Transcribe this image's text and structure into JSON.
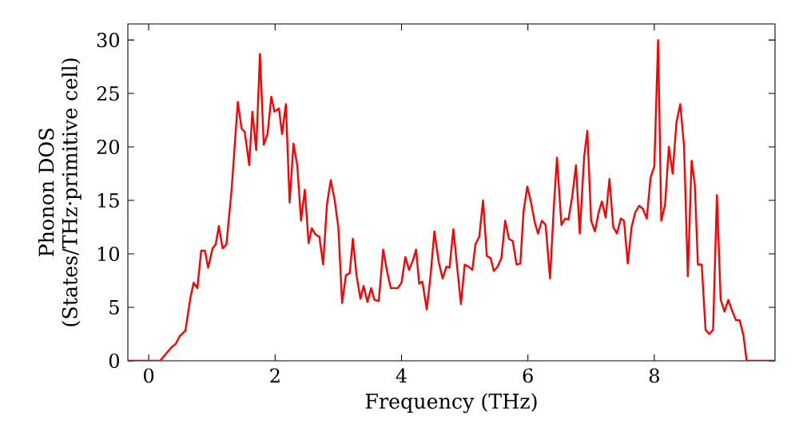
{
  "chart_data": {
    "type": "line",
    "xlabel": "Frequency (THz)",
    "ylabel": "Phonon DOS\n(States/THz·primitive cell)",
    "xlim": [
      -0.33,
      9.91
    ],
    "ylim": [
      0,
      31.5
    ],
    "xticks": [
      0,
      2,
      4,
      6,
      8
    ],
    "yticks": [
      0,
      5,
      10,
      15,
      20,
      25,
      30
    ],
    "grid": false,
    "line_style": "solid",
    "marker": "none",
    "series": [
      {
        "color": "#ff0000",
        "x": [
          -0.33,
          0.18,
          0.35,
          0.43,
          0.49,
          0.58,
          0.66,
          0.71,
          0.77,
          0.83,
          0.89,
          0.94,
          1.01,
          1.06,
          1.11,
          1.17,
          1.23,
          1.31,
          1.41,
          1.47,
          1.52,
          1.59,
          1.64,
          1.7,
          1.76,
          1.82,
          1.88,
          1.94,
          1.99,
          2.06,
          2.11,
          2.17,
          2.23,
          2.29,
          2.35,
          2.41,
          2.47,
          2.53,
          2.58,
          2.64,
          2.7,
          2.76,
          2.82,
          2.88,
          2.94,
          3.0,
          3.06,
          3.12,
          3.18,
          3.23,
          3.29,
          3.35,
          3.4,
          3.46,
          3.52,
          3.57,
          3.64,
          3.71,
          3.77,
          3.83,
          3.94,
          4.0,
          4.06,
          4.12,
          4.18,
          4.23,
          4.28,
          4.33,
          4.4,
          4.46,
          4.52,
          4.59,
          4.65,
          4.71,
          4.76,
          4.82,
          4.88,
          4.94,
          5.0,
          5.06,
          5.12,
          5.17,
          5.23,
          5.29,
          5.35,
          5.41,
          5.46,
          5.52,
          5.58,
          5.64,
          5.7,
          5.76,
          5.82,
          5.88,
          5.93,
          5.99,
          6.05,
          6.11,
          6.16,
          6.22,
          6.28,
          6.35,
          6.41,
          6.46,
          6.53,
          6.59,
          6.64,
          6.7,
          6.76,
          6.82,
          6.89,
          6.94,
          7.0,
          7.06,
          7.12,
          7.17,
          7.23,
          7.29,
          7.35,
          7.41,
          7.47,
          7.52,
          7.58,
          7.64,
          7.7,
          7.76,
          7.82,
          7.88,
          7.94,
          8.0,
          8.06,
          8.11,
          8.17,
          8.23,
          8.29,
          8.35,
          8.41,
          8.47,
          8.53,
          8.59,
          8.64,
          8.69,
          8.75,
          8.81,
          8.87,
          8.93,
          8.99,
          9.05,
          9.11,
          9.17,
          9.23,
          9.29,
          9.35,
          9.41,
          9.46,
          9.91
        ],
        "values": [
          0,
          0,
          1.2,
          1.6,
          2.3,
          2.8,
          5.9,
          7.3,
          6.8,
          10.3,
          10.3,
          8.7,
          10.5,
          10.9,
          12.6,
          10.5,
          10.9,
          15.9,
          24.2,
          21.7,
          21.4,
          18.3,
          23.3,
          19.7,
          28.7,
          20.2,
          21.2,
          24.7,
          23.3,
          23.6,
          21.2,
          24.0,
          14.8,
          20.3,
          18.3,
          13.1,
          16.0,
          11.0,
          12.4,
          11.8,
          11.6,
          9.0,
          14.6,
          16.9,
          15.1,
          12.5,
          5.4,
          8.0,
          8.2,
          11.4,
          7.9,
          5.8,
          7.0,
          5.5,
          6.8,
          5.7,
          5.6,
          10.4,
          8.4,
          6.8,
          6.8,
          7.3,
          9.7,
          8.5,
          9.4,
          10.4,
          7.2,
          7.4,
          4.8,
          8.0,
          12.1,
          9.2,
          7.7,
          8.8,
          8.7,
          12.3,
          8.8,
          5.3,
          9.0,
          8.8,
          8.5,
          10.9,
          11.6,
          15.0,
          9.8,
          9.6,
          8.4,
          8.8,
          9.6,
          13.1,
          11.4,
          11.2,
          9.0,
          9.1,
          13.9,
          16.3,
          14.8,
          12.9,
          11.9,
          13.1,
          12.7,
          7.7,
          14.4,
          19.0,
          12.7,
          13.3,
          13.2,
          15.3,
          18.3,
          11.9,
          19.1,
          21.5,
          13.1,
          12.1,
          13.9,
          14.9,
          13.4,
          17.0,
          12.5,
          11.9,
          13.3,
          13.1,
          9.1,
          12.5,
          13.9,
          14.5,
          14.2,
          13.3,
          17.1,
          18.2,
          30.0,
          13.1,
          14.6,
          20.0,
          17.5,
          22.3,
          24.0,
          20.1,
          7.9,
          18.7,
          16.5,
          9.0,
          9.0,
          2.9,
          2.5,
          2.9,
          15.5,
          5.7,
          4.6,
          5.7,
          4.7,
          3.8,
          3.8,
          2.4,
          0,
          0
        ]
      }
    ]
  }
}
